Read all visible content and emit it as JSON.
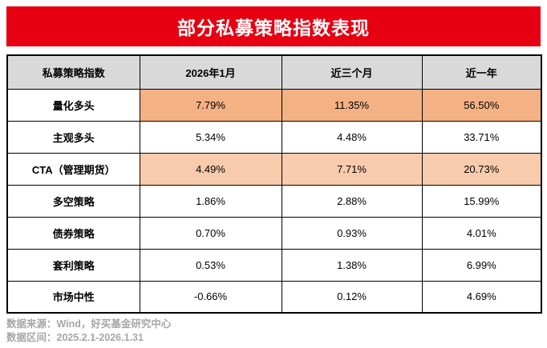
{
  "title": "部分私募策略指数表现",
  "table": {
    "headers": [
      "私募策略指数",
      "2026年1月",
      "近三个月",
      "近一年"
    ],
    "rows": [
      {
        "name": "量化多头",
        "values": [
          "7.79%",
          "11.35%",
          "56.50%"
        ],
        "highlight": "strong"
      },
      {
        "name": "主观多头",
        "values": [
          "5.34%",
          "4.48%",
          "33.71%"
        ],
        "highlight": "none"
      },
      {
        "name": "CTA（管理期货）",
        "values": [
          "4.49%",
          "7.71%",
          "20.73%"
        ],
        "highlight": "light"
      },
      {
        "name": "多空策略",
        "values": [
          "1.86%",
          "2.88%",
          "15.99%"
        ],
        "highlight": "none"
      },
      {
        "name": "债券策略",
        "values": [
          "0.70%",
          "0.93%",
          "4.01%"
        ],
        "highlight": "none"
      },
      {
        "name": "套利策略",
        "values": [
          "0.53%",
          "1.38%",
          "6.99%"
        ],
        "highlight": "none"
      },
      {
        "name": "市场中性",
        "values": [
          "-0.66%",
          "0.12%",
          "4.69%"
        ],
        "highlight": "none"
      }
    ]
  },
  "footer": {
    "source": "数据来源：Wind，好买基金研究中心",
    "range": "数据区间：2025.2.1-2026.1.31"
  },
  "colors": {
    "banner_red": "#E60012",
    "header_gray": "#D9D9D9",
    "highlight_strong": "#F4B183",
    "highlight_light": "#F8CBAD",
    "footer_gray": "#A6A6A6",
    "border_black": "#000000"
  }
}
